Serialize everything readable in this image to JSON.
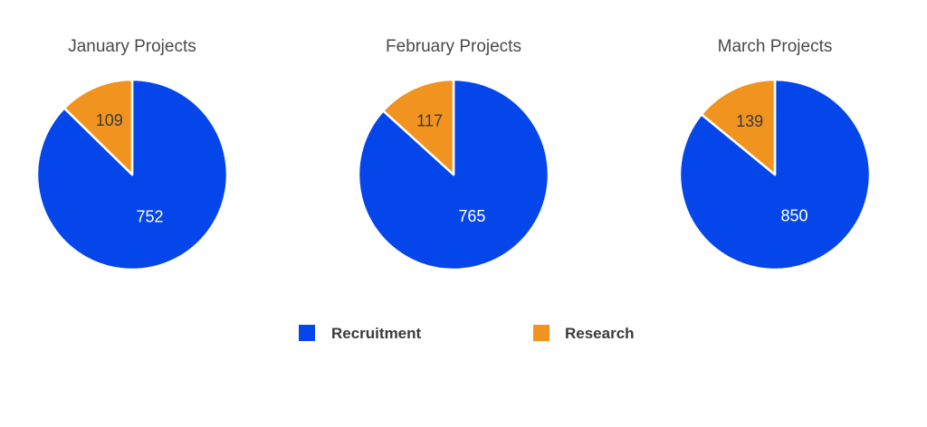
{
  "chart_data": {
    "type": "pie",
    "series_names": [
      "Recruitment",
      "Research"
    ],
    "colors": {
      "Recruitment": "#0546eb",
      "Research": "#f0931f"
    },
    "label_colors": {
      "Recruitment": "#ffffff",
      "Research": "#3a3a3a"
    },
    "start_angle": "12 o'clock",
    "direction": "clockwise",
    "legend_position": "bottom",
    "pies": [
      {
        "title": "January Projects",
        "values": [
          752,
          109
        ]
      },
      {
        "title": "February Projects",
        "values": [
          765,
          117
        ]
      },
      {
        "title": "March Projects",
        "values": [
          850,
          139
        ]
      }
    ]
  }
}
